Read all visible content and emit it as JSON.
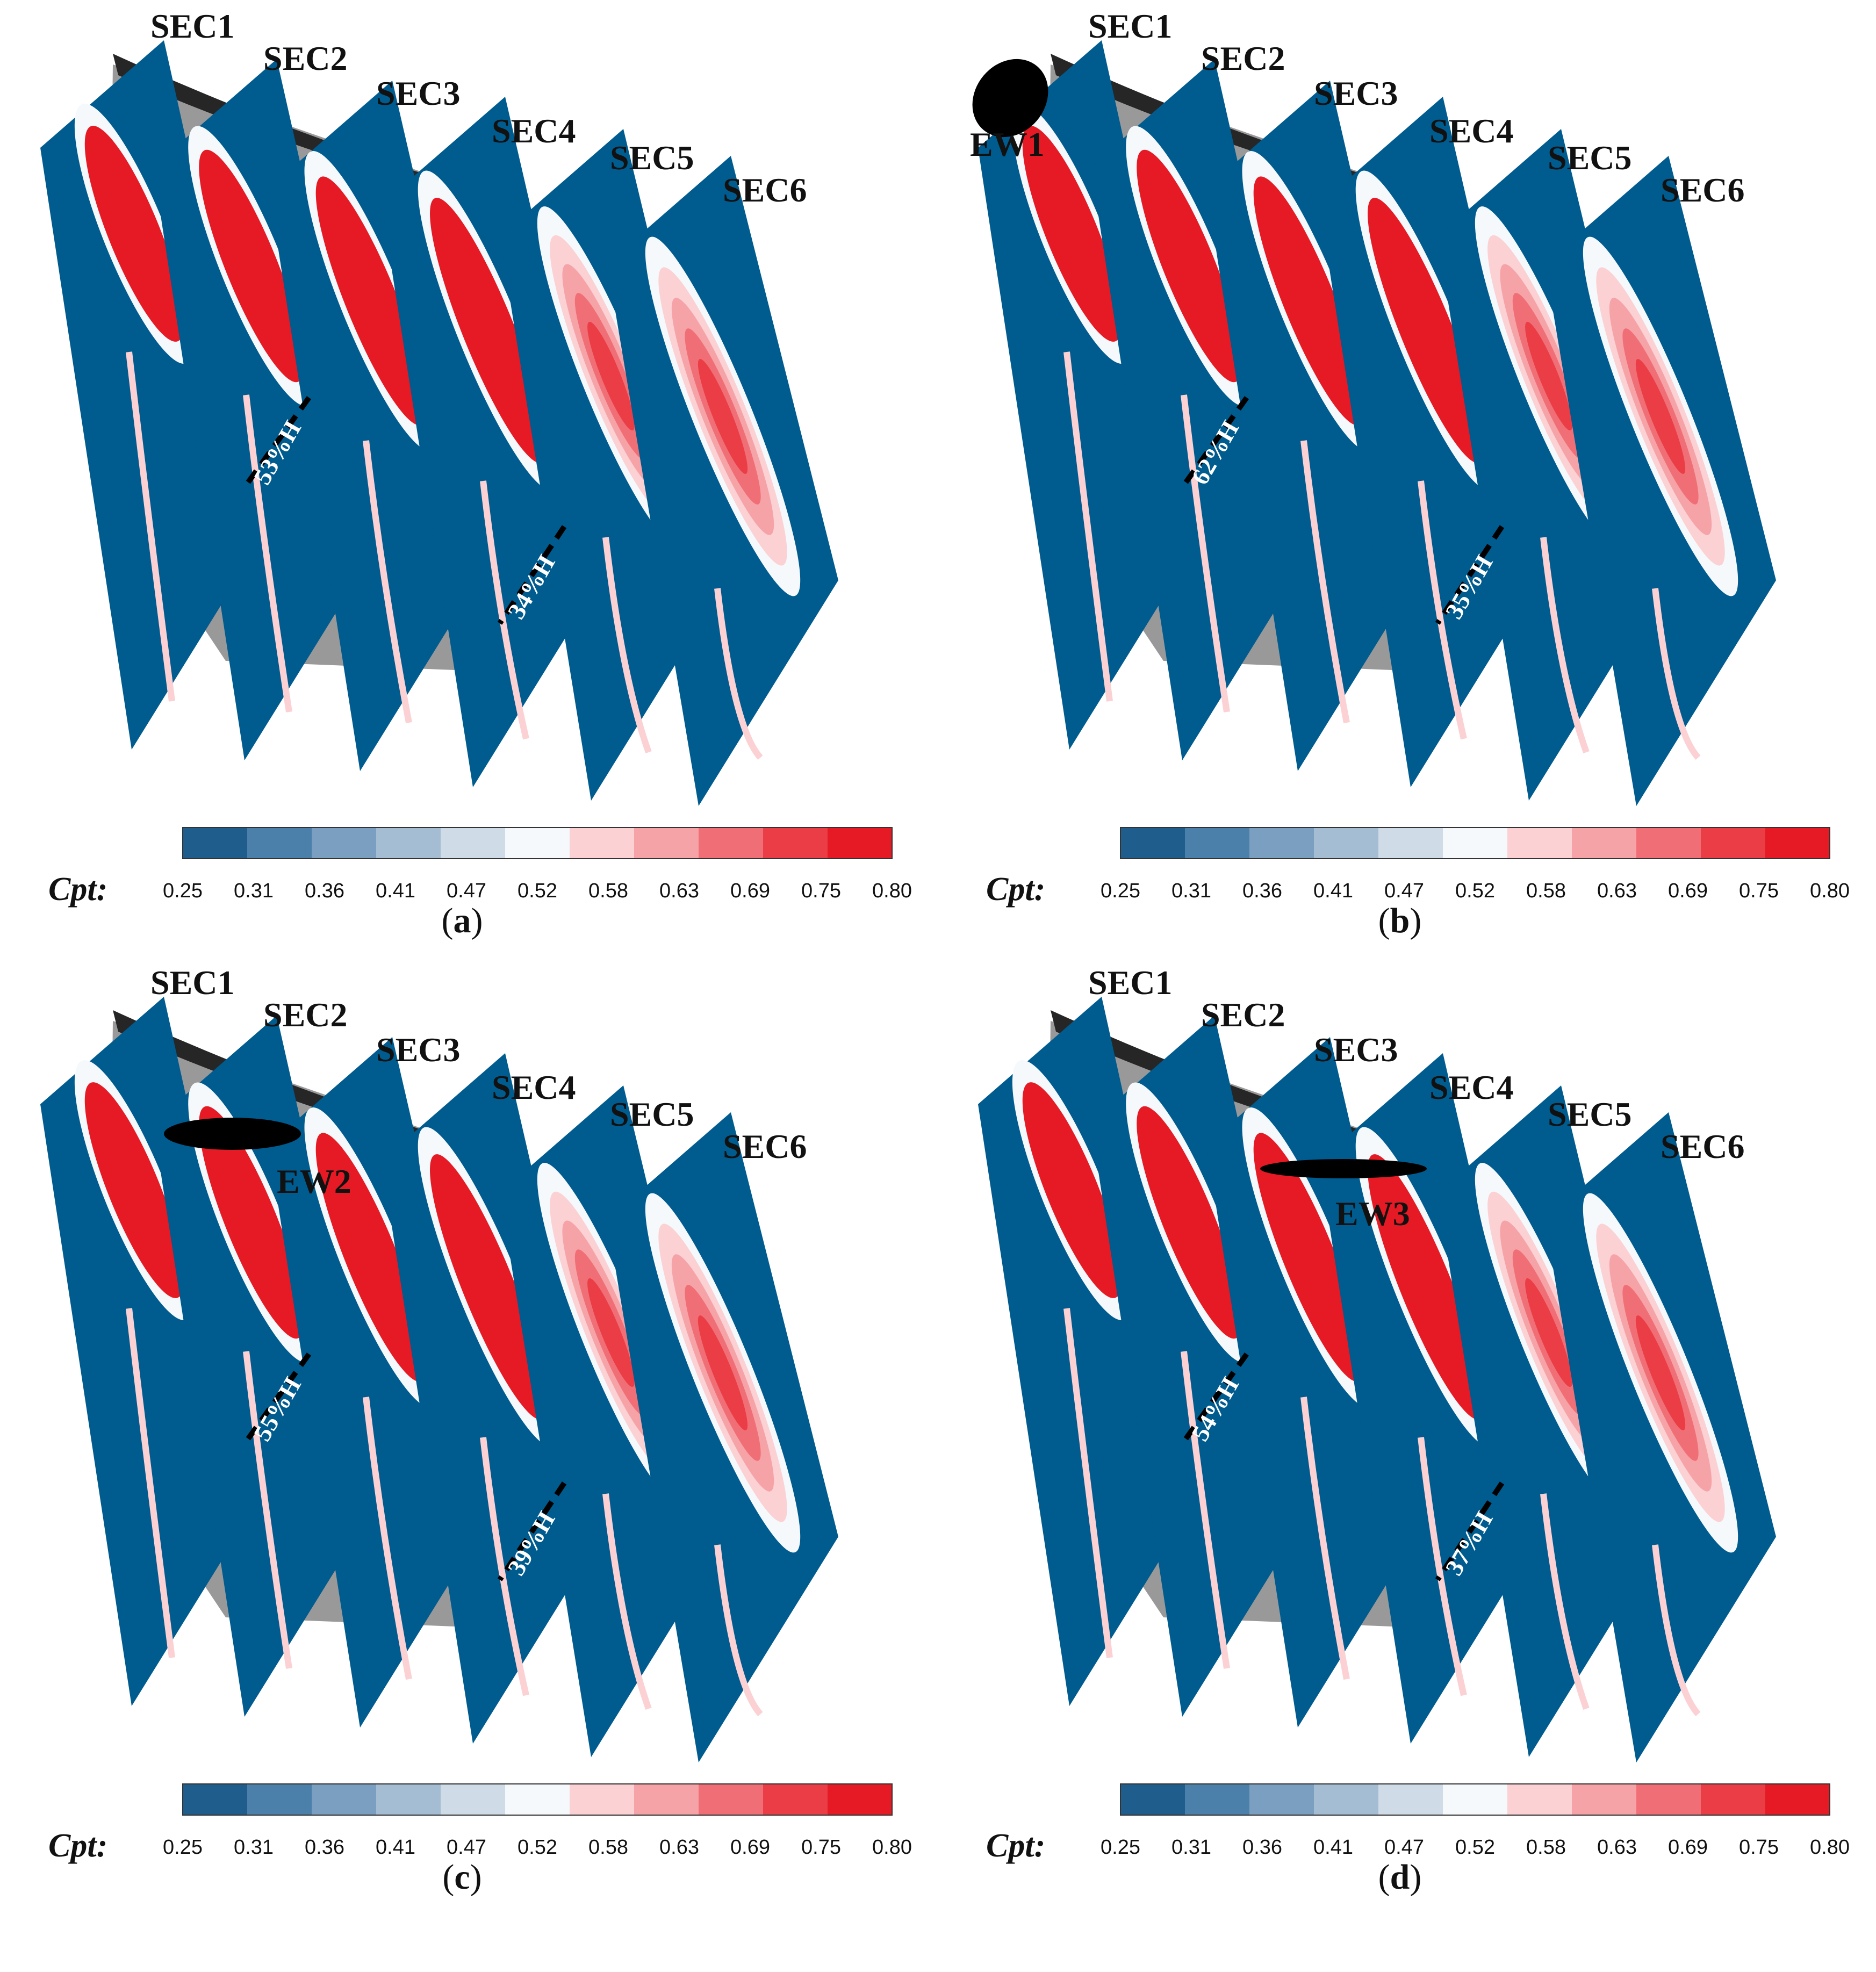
{
  "colorbar": {
    "title": "Cpt:",
    "ticks": [
      "0.25",
      "0.31",
      "0.36",
      "0.41",
      "0.47",
      "0.52",
      "0.58",
      "0.63",
      "0.69",
      "0.75",
      "0.80"
    ],
    "colors": [
      "#1f5d8c",
      "#4a80a9",
      "#7a9fc0",
      "#a5bdd3",
      "#cfdbe6",
      "#f5f9fc",
      "#fbd1d4",
      "#f6a3a8",
      "#f06f76",
      "#eb3d45",
      "#e51a24"
    ]
  },
  "colors": {
    "low": "#005b8f",
    "high": "#e8121b",
    "blade": "#999999",
    "endwall": "#262626",
    "background": "#ffffff"
  },
  "section_labels": [
    "SEC1",
    "SEC2",
    "SEC3",
    "SEC4",
    "SEC5",
    "SEC6"
  ],
  "panels": [
    {
      "id": "a",
      "caption_letter": "a",
      "ew_label": "",
      "height_labels": [
        "53%H",
        "34%H"
      ],
      "section_intensity": [
        0.85,
        0.9,
        0.95,
        1.0,
        0.7,
        0.45
      ]
    },
    {
      "id": "b",
      "caption_letter": "b",
      "ew_label": "EW1",
      "height_labels": [
        "62%H",
        "35%H"
      ],
      "section_intensity": [
        0.85,
        0.9,
        0.95,
        1.0,
        0.7,
        0.4
      ]
    },
    {
      "id": "c",
      "caption_letter": "c",
      "ew_label": "EW2",
      "height_labels": [
        "55%H",
        "39%H"
      ],
      "section_intensity": [
        0.85,
        0.9,
        0.95,
        1.0,
        0.55,
        0.35
      ]
    },
    {
      "id": "d",
      "caption_letter": "d",
      "ew_label": "EW3",
      "height_labels": [
        "54%H",
        "37%H"
      ],
      "section_intensity": [
        0.85,
        0.9,
        0.95,
        1.0,
        0.7,
        0.4
      ]
    }
  ]
}
